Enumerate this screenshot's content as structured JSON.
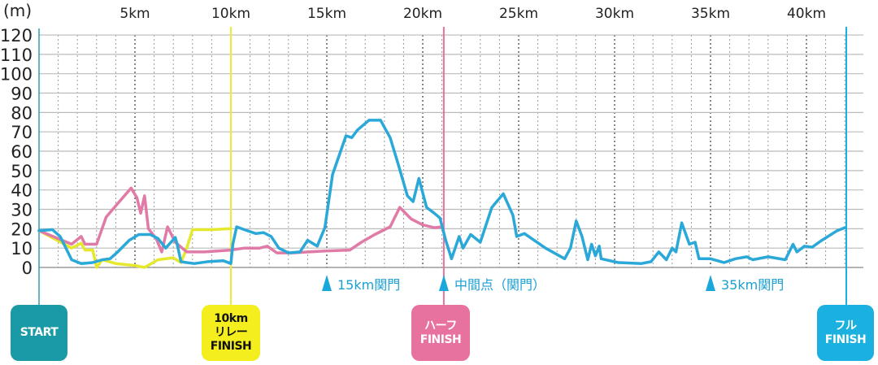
{
  "chart_data": {
    "type": "line",
    "title": "",
    "ylabel": "(m)",
    "xlabel": "",
    "ylim": [
      0,
      120
    ],
    "xlim": [
      0,
      42.195
    ],
    "y_ticks": [
      "0",
      "10",
      "20",
      "30",
      "40",
      "50",
      "60",
      "70",
      "80",
      "90",
      "100",
      "110",
      "120"
    ],
    "x_ticks": [
      {
        "km": 5,
        "label": "5km"
      },
      {
        "km": 10,
        "label": "10km"
      },
      {
        "km": 15,
        "label": "15km"
      },
      {
        "km": 20,
        "label": "20km"
      },
      {
        "km": 25,
        "label": "25km"
      },
      {
        "km": 30,
        "label": "30km"
      },
      {
        "km": 35,
        "label": "35km"
      },
      {
        "km": 40,
        "label": "40km"
      }
    ],
    "grid": true,
    "series": [
      {
        "name": "フル",
        "color": "#2aa8d8",
        "x": [
          0,
          0.7,
          1.1,
          1.7,
          2.2,
          2.8,
          3.3,
          3.7,
          4.1,
          4.7,
          5.2,
          5.8,
          6.2,
          6.6,
          7.1,
          7.2,
          7.4,
          7.7,
          8.1,
          8.8,
          9.6,
          10,
          10.1,
          10.3,
          10.7,
          11.3,
          11.7,
          12.1,
          12.5,
          13,
          13.6,
          14,
          14.5,
          14.9,
          15.3,
          16,
          16.3,
          16.6,
          17.2,
          17.8,
          18.3,
          18.7,
          19.2,
          19.5,
          19.8,
          20.2,
          20.6,
          20.9,
          21.2,
          21.5,
          21.9,
          22.1,
          22.5,
          23,
          23.6,
          24.2,
          24.7,
          24.9,
          25.3,
          26.4,
          27.4,
          27.7,
          28,
          28.3,
          28.6,
          28.8,
          29,
          29.2,
          29.3,
          30.2,
          31.4,
          31.9,
          32.3,
          32.7,
          33,
          33.2,
          33.5,
          33.9,
          34.2,
          34.4,
          35,
          35.7,
          36.3,
          36.9,
          37.2,
          38,
          38.9,
          39.3,
          39.5,
          39.9,
          40.3,
          40.8,
          41.6,
          42.0
        ],
        "y": [
          19,
          19.5,
          16,
          4,
          2,
          2.5,
          4,
          4.5,
          8,
          14,
          17,
          17,
          15,
          10,
          15.5,
          12,
          3,
          2.5,
          2,
          3,
          3.5,
          2,
          12,
          21,
          19.5,
          17.5,
          18,
          16,
          10,
          7.5,
          8,
          14,
          11,
          20.5,
          48,
          68,
          67,
          71,
          76,
          76,
          67,
          54,
          37,
          34,
          46,
          31,
          28,
          25.5,
          14,
          4.5,
          16,
          10,
          17,
          13,
          31,
          38,
          27,
          16,
          17.5,
          10,
          4.5,
          10,
          24,
          16,
          4,
          12,
          6,
          11,
          4.5,
          2.5,
          2,
          3,
          8,
          4,
          10,
          8,
          23,
          12,
          13,
          4.5,
          4.5,
          2.5,
          4.5,
          5.5,
          4,
          5.5,
          4,
          12,
          8,
          11,
          10.5,
          14,
          19,
          20.5
        ]
      },
      {
        "name": "ハーフ",
        "color": "#e07aa6",
        "x": [
          0,
          1.7,
          2.2,
          2.4,
          3.0,
          3.5,
          4.1,
          4.8,
          5.1,
          5.3,
          5.5,
          5.7,
          6.1,
          6.4,
          6.7,
          7.1,
          7.7,
          8.6,
          10,
          10.7,
          11.5,
          11.9,
          12.4,
          13.2,
          14.9,
          16.2,
          16.8,
          17.5,
          18.3,
          18.8,
          19.4,
          20,
          20.6,
          21.0
        ],
        "y": [
          19,
          12,
          16,
          12,
          12,
          26,
          33,
          41,
          36,
          28,
          37,
          20,
          15,
          8,
          21,
          13,
          8,
          8,
          9,
          10,
          10,
          11,
          7.5,
          7.5,
          8.5,
          9,
          13,
          17,
          21,
          31,
          25,
          22,
          20.5,
          21
        ]
      },
      {
        "name": "10kmリレー",
        "color": "#e6e82e",
        "x": [
          0,
          1.7,
          2.2,
          2.4,
          2.8,
          3.0,
          3.3,
          4,
          5,
          5.5,
          6.2,
          7,
          7.4,
          7.7,
          8,
          9,
          10
        ],
        "y": [
          19,
          10,
          12.5,
          9,
          9,
          0,
          4,
          2,
          1,
          0,
          4,
          5,
          2.5,
          10,
          19.5,
          19.5,
          20
        ]
      }
    ],
    "annotations": [
      {
        "km": 15,
        "label": "15km関門"
      },
      {
        "km": 21.1,
        "label": "中間点（関門）"
      },
      {
        "km": 35,
        "label": "35km関門"
      }
    ],
    "markers": [
      {
        "km": 0,
        "lines": [
          "START"
        ],
        "color": "#1a9aa6",
        "text_color": "#ffffff"
      },
      {
        "km": 10,
        "lines": [
          "10km",
          "リレー",
          "FINISH"
        ],
        "color": "#f5ee1f",
        "text_color": "#111111"
      },
      {
        "km": 21.0975,
        "lines": [
          "ハーフ",
          "FINISH"
        ],
        "color": "#e8729f",
        "text_color": "#ffffff"
      },
      {
        "km": 42.195,
        "lines": [
          "フル",
          "FINISH"
        ],
        "color": "#1ab0e0",
        "text_color": "#ffffff"
      }
    ]
  }
}
